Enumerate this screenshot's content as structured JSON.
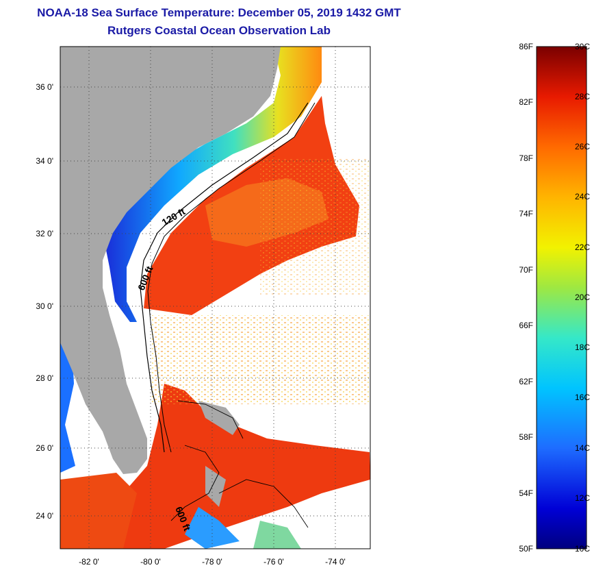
{
  "header": {
    "title": "NOAA-18 Sea Surface Temperature:  December 05, 2019 1432 GMT",
    "subtitle": "Rutgers Coastal Ocean Observation Lab"
  },
  "map": {
    "lat_labels": [
      "36 0'",
      "34 0'",
      "32 0'",
      "30 0'",
      "28 0'",
      "26 0'",
      "24 0'"
    ],
    "lon_labels": [
      "-82 0'",
      "-80 0'",
      "-78 0'",
      "-76 0'",
      "-74 0'"
    ],
    "contour_labels": [
      "120 ft",
      "600 ft",
      "600 ft"
    ]
  },
  "colorbar": {
    "fahrenheit": [
      "86F",
      "82F",
      "78F",
      "74F",
      "70F",
      "66F",
      "62F",
      "58F",
      "54F",
      "50F"
    ],
    "celsius": [
      "30C",
      "28C",
      "26C",
      "24C",
      "22C",
      "20C",
      "18C",
      "16C",
      "14C",
      "12C",
      "10C"
    ]
  },
  "colors": {
    "title": "#1a1aa6",
    "land": "#a8a8a8",
    "warm": "#f23a10",
    "cold": "#1a2ad8"
  }
}
